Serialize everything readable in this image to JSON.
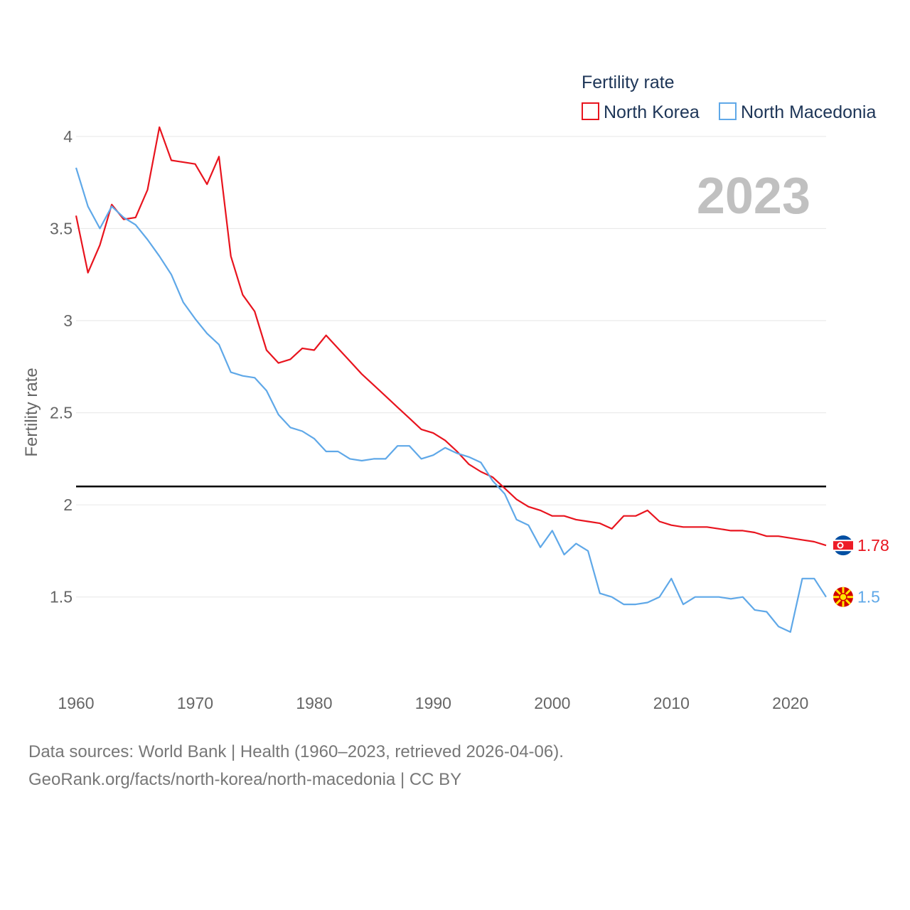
{
  "legend_title": "Fertility rate",
  "watermark_year": "2023",
  "footer": {
    "line1": "Data sources: World Bank | Health (1960–2023, retrieved 2026-04-06).",
    "line2": "GeoRank.org/facts/north-korea/north-macedonia | CC BY"
  },
  "chart_data": {
    "type": "line",
    "ylabel": "Fertility rate",
    "xlabel": "",
    "xlim": [
      1960,
      2023
    ],
    "ylim": [
      1.1,
      4.2
    ],
    "x_ticks": [
      1960,
      1970,
      1980,
      1990,
      2000,
      2010,
      2020
    ],
    "y_ticks": [
      1.5,
      2,
      2.5,
      3,
      3.5,
      4
    ],
    "y_tick_labels": [
      "1.5",
      "2",
      "2.5",
      "3",
      "3.5",
      "4"
    ],
    "reference_line": {
      "value": 2.1,
      "color": "#000000"
    },
    "x": [
      1960,
      1961,
      1962,
      1963,
      1964,
      1965,
      1966,
      1967,
      1968,
      1969,
      1970,
      1971,
      1972,
      1973,
      1974,
      1975,
      1976,
      1977,
      1978,
      1979,
      1980,
      1981,
      1982,
      1983,
      1984,
      1985,
      1986,
      1987,
      1988,
      1989,
      1990,
      1991,
      1992,
      1993,
      1994,
      1995,
      1996,
      1997,
      1998,
      1999,
      2000,
      2001,
      2002,
      2003,
      2004,
      2005,
      2006,
      2007,
      2008,
      2009,
      2010,
      2011,
      2012,
      2013,
      2014,
      2015,
      2016,
      2017,
      2018,
      2019,
      2020,
      2021,
      2022,
      2023
    ],
    "series": [
      {
        "name": "North Korea",
        "color": "#e8141e",
        "end_label": "1.78",
        "values": [
          3.57,
          3.26,
          3.41,
          3.63,
          3.55,
          3.56,
          3.71,
          4.05,
          3.87,
          3.86,
          3.85,
          3.74,
          3.89,
          3.35,
          3.14,
          3.05,
          2.84,
          2.77,
          2.79,
          2.85,
          2.84,
          2.92,
          2.85,
          2.78,
          2.71,
          2.65,
          2.59,
          2.53,
          2.47,
          2.41,
          2.39,
          2.35,
          2.29,
          2.22,
          2.18,
          2.15,
          2.09,
          2.03,
          1.99,
          1.97,
          1.94,
          1.94,
          1.92,
          1.91,
          1.9,
          1.87,
          1.94,
          1.94,
          1.97,
          1.91,
          1.89,
          1.88,
          1.88,
          1.88,
          1.87,
          1.86,
          1.86,
          1.85,
          1.83,
          1.83,
          1.82,
          1.81,
          1.8,
          1.78
        ]
      },
      {
        "name": "North Macedonia",
        "color": "#5fa8e8",
        "end_label": "1.5",
        "values": [
          3.83,
          3.62,
          3.5,
          3.62,
          3.56,
          3.52,
          3.44,
          3.35,
          3.25,
          3.1,
          3.01,
          2.93,
          2.87,
          2.72,
          2.7,
          2.69,
          2.62,
          2.49,
          2.42,
          2.4,
          2.36,
          2.29,
          2.29,
          2.25,
          2.24,
          2.25,
          2.25,
          2.32,
          2.32,
          2.25,
          2.27,
          2.31,
          2.28,
          2.26,
          2.23,
          2.13,
          2.06,
          1.92,
          1.89,
          1.77,
          1.86,
          1.73,
          1.79,
          1.75,
          1.52,
          1.5,
          1.46,
          1.46,
          1.47,
          1.5,
          1.6,
          1.46,
          1.5,
          1.5,
          1.5,
          1.49,
          1.5,
          1.43,
          1.42,
          1.34,
          1.31,
          1.6,
          1.6,
          1.5
        ]
      }
    ]
  }
}
